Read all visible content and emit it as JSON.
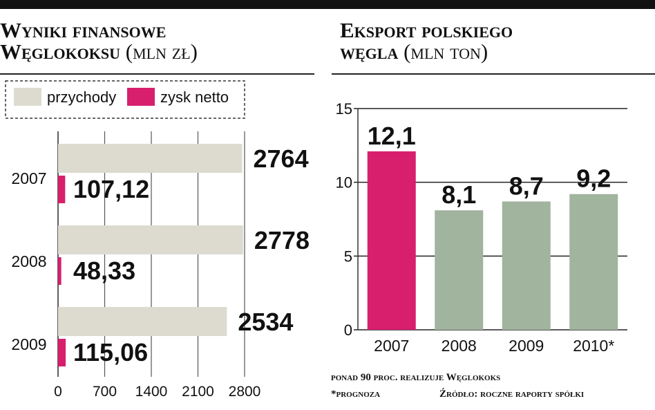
{
  "left_title": {
    "line1": "Wyniki finansowe",
    "line2": "Węglokoksu",
    "unit": "(mln zł)"
  },
  "right_title": {
    "line1": "Eksport polskiego",
    "line2": "węgla",
    "unit": "(mln ton)"
  },
  "footnotes": {
    "line1": "ponad 90 proc. realizuje Węglokoks",
    "prognoza": "*prognoza",
    "source": "Źródło: roczne raporty spółki"
  },
  "colors": {
    "revenue": "#dddbd0",
    "profit": "#d81f6e",
    "export": "#a1b49e",
    "export_2007": "#d81f6e"
  },
  "chart_data": [
    {
      "type": "bar",
      "orientation": "horizontal",
      "categories": [
        "2007",
        "2008",
        "2009"
      ],
      "series": [
        {
          "name": "przychody",
          "values": [
            2764,
            2778,
            2534
          ],
          "labels": [
            "2764",
            "2778",
            "2534"
          ]
        },
        {
          "name": "zysk netto",
          "values": [
            107.12,
            48.33,
            115.06
          ],
          "labels": [
            "107,12",
            "48,33",
            "115,06"
          ]
        }
      ],
      "xlim": [
        0,
        2800
      ],
      "xticks": [
        "0",
        "700",
        "1400",
        "2100",
        "2800"
      ],
      "xtick_values": [
        0,
        700,
        1400,
        2100,
        2800
      ],
      "grid": true,
      "legend": "top"
    },
    {
      "type": "bar",
      "categories": [
        "2007",
        "2008",
        "2009",
        "2010*"
      ],
      "values": [
        12.1,
        8.1,
        8.7,
        9.2
      ],
      "labels": [
        "12,1",
        "8,1",
        "8,7",
        "9,2"
      ],
      "ylim": [
        0,
        15
      ],
      "yticks": [
        "0",
        "5",
        "10",
        "15"
      ],
      "ytick_values": [
        0,
        5,
        10,
        15
      ],
      "grid": true
    }
  ]
}
